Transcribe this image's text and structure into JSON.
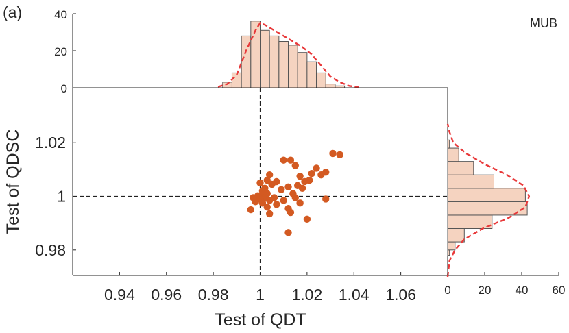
{
  "panel_label": "(a)",
  "chart_data": [
    {
      "type": "scatter",
      "xlabel": "Test of QDT",
      "ylabel": "Test of QDSC",
      "xlim": [
        0.92,
        1.08
      ],
      "ylim": [
        0.9705,
        1.0405
      ],
      "xticks": [
        "0.94",
        "0.96",
        "0.98",
        "1",
        "1.02",
        "1.04",
        "1.06"
      ],
      "yticks": [
        "0.98",
        "1",
        "1.02"
      ],
      "reference_lines": {
        "x": 1,
        "y": 1
      },
      "color": "#d35a22",
      "points": [
        {
          "x": 1.0,
          "y": 1.0
        },
        {
          "x": 1.001,
          "y": 1.0005
        },
        {
          "x": 0.999,
          "y": 1.0002
        },
        {
          "x": 1.002,
          "y": 0.9995
        },
        {
          "x": 1.0,
          "y": 0.999
        },
        {
          "x": 1.003,
          "y": 1.001
        },
        {
          "x": 1.001,
          "y": 1.002
        },
        {
          "x": 0.998,
          "y": 0.998
        },
        {
          "x": 1.004,
          "y": 0.9985
        },
        {
          "x": 1.002,
          "y": 1.003
        },
        {
          "x": 1.0,
          "y": 1.005
        },
        {
          "x": 1.003,
          "y": 1.006
        },
        {
          "x": 1.005,
          "y": 1.0045
        },
        {
          "x": 1.006,
          "y": 0.9995
        },
        {
          "x": 1.001,
          "y": 0.9975
        },
        {
          "x": 0.997,
          "y": 0.9995
        },
        {
          "x": 1.004,
          "y": 1.008
        },
        {
          "x": 1.007,
          "y": 1.0055
        },
        {
          "x": 1.01,
          "y": 1.0135
        },
        {
          "x": 1.013,
          "y": 1.0135
        },
        {
          "x": 1.015,
          "y": 1.0115
        },
        {
          "x": 1.017,
          "y": 1.0075
        },
        {
          "x": 1.016,
          "y": 1.004
        },
        {
          "x": 1.019,
          "y": 1.0055
        },
        {
          "x": 1.021,
          "y": 1.006
        },
        {
          "x": 1.022,
          "y": 1.0085
        },
        {
          "x": 1.024,
          "y": 1.0105
        },
        {
          "x": 1.026,
          "y": 1.008
        },
        {
          "x": 1.028,
          "y": 1.009
        },
        {
          "x": 1.031,
          "y": 1.016
        },
        {
          "x": 1.034,
          "y": 1.0155
        },
        {
          "x": 1.028,
          "y": 0.999
        },
        {
          "x": 1.02,
          "y": 0.9915
        },
        {
          "x": 1.013,
          "y": 0.994
        },
        {
          "x": 1.012,
          "y": 0.9955
        },
        {
          "x": 1.015,
          "y": 0.9995
        },
        {
          "x": 1.017,
          "y": 0.9975
        },
        {
          "x": 1.01,
          "y": 0.9985
        },
        {
          "x": 1.009,
          "y": 1.0025
        },
        {
          "x": 1.012,
          "y": 1.0035
        },
        {
          "x": 1.014,
          "y": 1.001
        },
        {
          "x": 1.018,
          "y": 1.003
        },
        {
          "x": 1.012,
          "y": 0.9865
        },
        {
          "x": 0.996,
          "y": 0.995
        },
        {
          "x": 1.003,
          "y": 0.996
        },
        {
          "x": 1.004,
          "y": 0.9935
        },
        {
          "x": 1.007,
          "y": 0.997
        }
      ]
    },
    {
      "type": "bar",
      "orientation": "vertical",
      "annotation": "MUB",
      "yticks": [
        "0",
        "20",
        "40"
      ],
      "ylim": [
        0,
        40
      ],
      "bin_edges": [
        0.984,
        0.988,
        0.992,
        0.996,
        1.0,
        1.004,
        1.008,
        1.012,
        1.016,
        1.02,
        1.024,
        1.028,
        1.032,
        1.036
      ],
      "values": [
        3,
        8,
        28,
        36,
        31,
        28,
        25,
        23,
        19,
        14,
        8,
        2,
        1
      ],
      "kde_x": [
        0.982,
        0.986,
        0.99,
        0.994,
        0.998,
        1.0,
        1.002,
        1.006,
        1.01,
        1.014,
        1.018,
        1.022,
        1.026,
        1.03,
        1.034,
        1.038,
        1.042
      ],
      "kde_y": [
        0.5,
        2,
        7,
        20,
        31,
        35,
        34,
        31,
        28,
        25,
        22,
        18,
        12,
        6,
        3,
        1,
        0.3
      ]
    },
    {
      "type": "bar",
      "orientation": "horizontal",
      "xticks": [
        "0",
        "20",
        "40",
        "60"
      ],
      "xlim": [
        0,
        60
      ],
      "bin_edges": [
        0.978,
        0.98,
        0.983,
        0.988,
        0.993,
        0.998,
        1.003,
        1.008,
        1.013,
        1.018,
        1.021
      ],
      "values": [
        1,
        4,
        9,
        24,
        43,
        42,
        25,
        14,
        6,
        1
      ],
      "kde_y": [
        0.97,
        0.976,
        0.98,
        0.984,
        0.988,
        0.992,
        0.996,
        1.0,
        1.004,
        1.008,
        1.012,
        1.016,
        1.02,
        1.024,
        1.027
      ],
      "kde_x": [
        0,
        1,
        4,
        9,
        19,
        33,
        42,
        44,
        41,
        32,
        20,
        10,
        3,
        1,
        0
      ]
    }
  ]
}
